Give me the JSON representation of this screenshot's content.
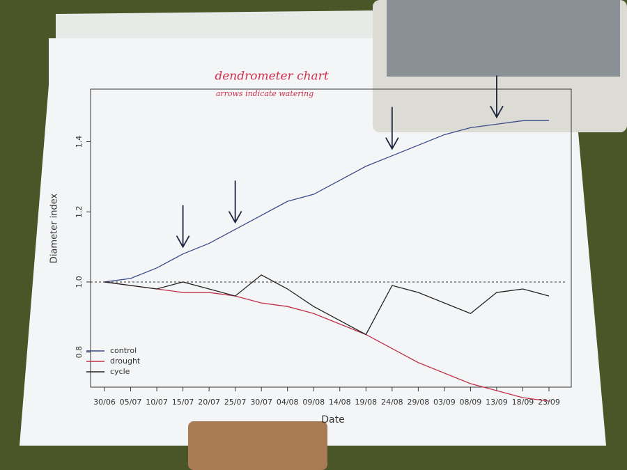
{
  "chart_data": {
    "type": "line",
    "annotation_title": "dendrometer chart",
    "annotation_subtitle": "arrows indicate watering",
    "x_label": "Date",
    "y_label": "Diameter index",
    "categories": [
      "30/06",
      "05/07",
      "10/07",
      "15/07",
      "20/07",
      "25/07",
      "30/07",
      "04/08",
      "09/08",
      "14/08",
      "19/08",
      "24/08",
      "29/08",
      "03/09",
      "08/09",
      "13/09",
      "18/09",
      "23/09"
    ],
    "series": [
      {
        "name": "control",
        "color": "#3b4a8a",
        "values": [
          1.0,
          1.01,
          1.04,
          1.08,
          1.11,
          1.15,
          1.19,
          1.23,
          1.25,
          1.29,
          1.33,
          1.36,
          1.39,
          1.42,
          1.44,
          1.45,
          1.46,
          1.46
        ]
      },
      {
        "name": "drought",
        "color": "#c0304a",
        "values": [
          1.0,
          0.99,
          0.98,
          0.97,
          0.97,
          0.96,
          0.94,
          0.93,
          0.91,
          0.88,
          0.85,
          0.81,
          0.77,
          0.74,
          0.71,
          0.69,
          0.67,
          0.66
        ]
      },
      {
        "name": "cycle",
        "color": "#222222",
        "values": [
          1.0,
          0.99,
          0.98,
          1.0,
          0.98,
          0.96,
          1.02,
          0.98,
          0.93,
          0.89,
          0.85,
          0.99,
          0.97,
          0.94,
          0.91,
          0.97,
          0.98,
          0.96
        ]
      }
    ],
    "watering": [
      "15/07",
      "25/07",
      "24/08",
      "13/09"
    ],
    "reference_line": 1,
    "ylim": [
      0.7,
      1.55
    ],
    "yticks": [
      0.8,
      {
        "value": 1,
        "label": "1.0"
      },
      1.2,
      1.4
    ],
    "legend": "bottom-left"
  }
}
